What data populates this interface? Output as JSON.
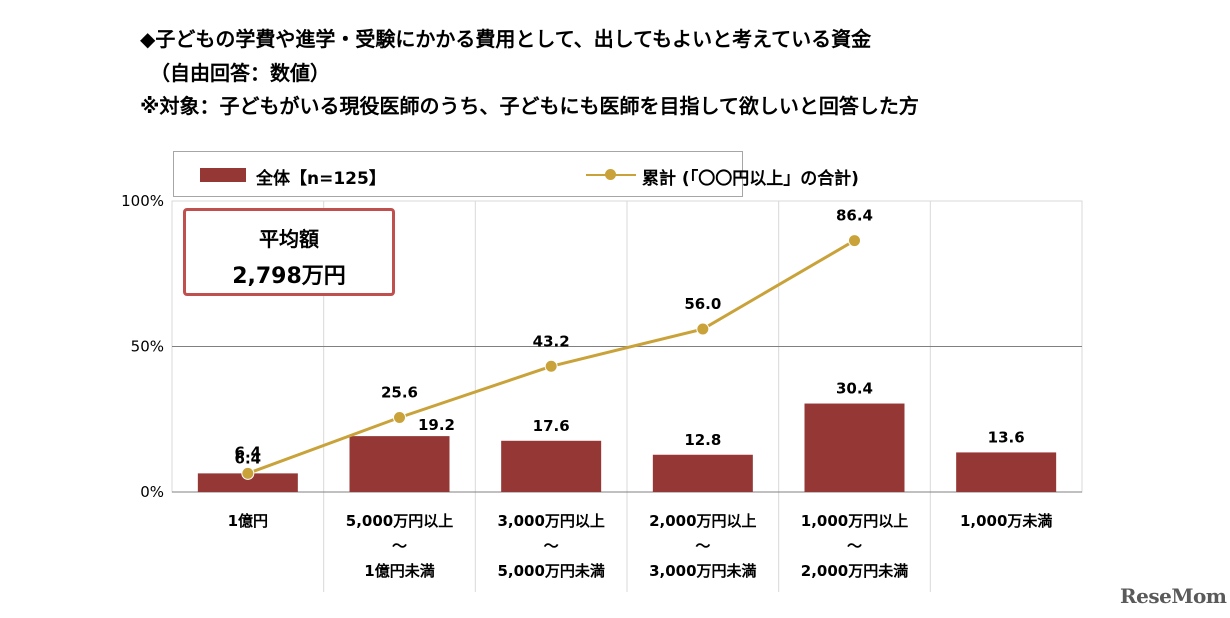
{
  "titles": {
    "line1": "◆子どもの学費や進学・受験にかかる費用として、出してもよいと考えている資金",
    "line2": "（自由回答：数値）",
    "line3": "※対象：子どもがいる現役医師のうち、子どもにも医師を目指して欲しいと回答した方"
  },
  "average_box": {
    "label": "平均額",
    "value": "2,798万円"
  },
  "logo": "ReseMom",
  "colors": {
    "bar": "#953735",
    "line": "#c9a23a",
    "box_border": "#c0504d"
  },
  "chart_data": {
    "type": "bar",
    "categories": [
      [
        "1億円"
      ],
      [
        "5,000万円以上",
        "～",
        "1億円未満"
      ],
      [
        "3,000万円以上",
        "～",
        "5,000万円未満"
      ],
      [
        "2,000万円以上",
        "～",
        "3,000万円未満"
      ],
      [
        "1,000万円以上",
        "～",
        "2,000万円未満"
      ],
      [
        "1,000万未満"
      ]
    ],
    "series": [
      {
        "name": "全体【n=125】",
        "type": "bar",
        "values": [
          6.4,
          19.2,
          17.6,
          12.8,
          30.4,
          13.6
        ]
      },
      {
        "name": "累計 (「〇〇円以上」の合計)",
        "type": "line",
        "values": [
          6.4,
          25.6,
          43.2,
          56.0,
          86.4,
          null
        ]
      }
    ],
    "y_ticks": [
      "0%",
      "50%",
      "100%"
    ],
    "ylim": [
      0,
      100
    ],
    "legend": "top"
  }
}
